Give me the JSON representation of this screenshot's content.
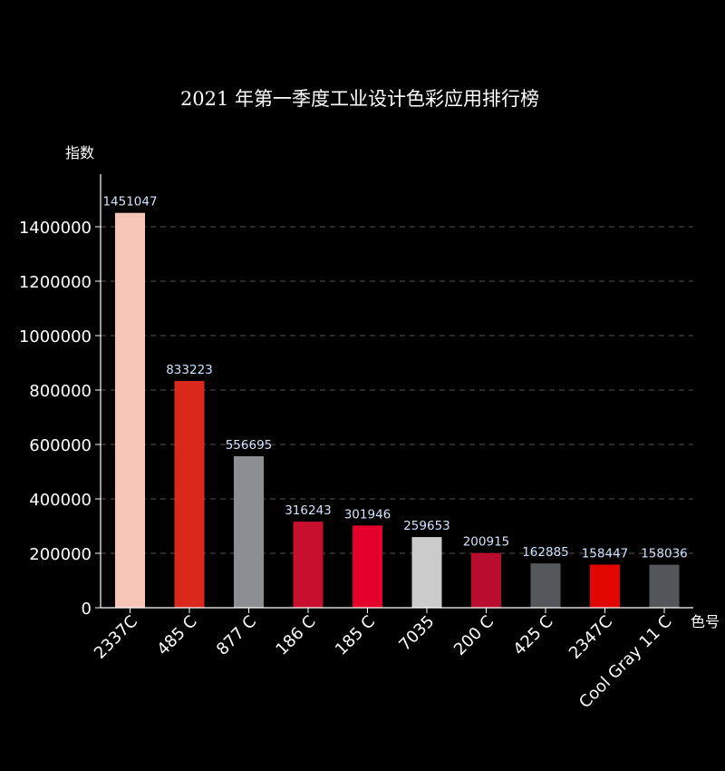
{
  "chart_data": {
    "type": "bar",
    "title": "2021 年第一季度工业设计色彩应用排行榜",
    "ylabel": "指数",
    "xlabel": "色号",
    "categories": [
      "2337C",
      "485 C",
      "877 C",
      "186 C",
      "185 C",
      "7035",
      "200 C",
      "425 C",
      "2347C",
      "Cool Gray 11 C"
    ],
    "values": [
      1451047,
      833223,
      556695,
      316243,
      301946,
      259653,
      200915,
      162885,
      158447,
      158036
    ],
    "bar_colors": [
      "#f7c4b8",
      "#da291c",
      "#8b8f91",
      "#c8102e",
      "#e4002b",
      "#cbcbcb",
      "#ba0c2f",
      "#54585a",
      "#e10600",
      "#53565a"
    ],
    "ylim": [
      0,
      1600000
    ],
    "yticks": [
      0,
      200000,
      400000,
      600000,
      800000,
      1000000,
      1200000,
      1400000
    ],
    "grid": true,
    "legend": "none",
    "colors": {
      "background": "#000000",
      "text": "#ffffff",
      "grid": "#555555",
      "axis": "#ffffff",
      "data_label": "#cfe3ff"
    }
  }
}
